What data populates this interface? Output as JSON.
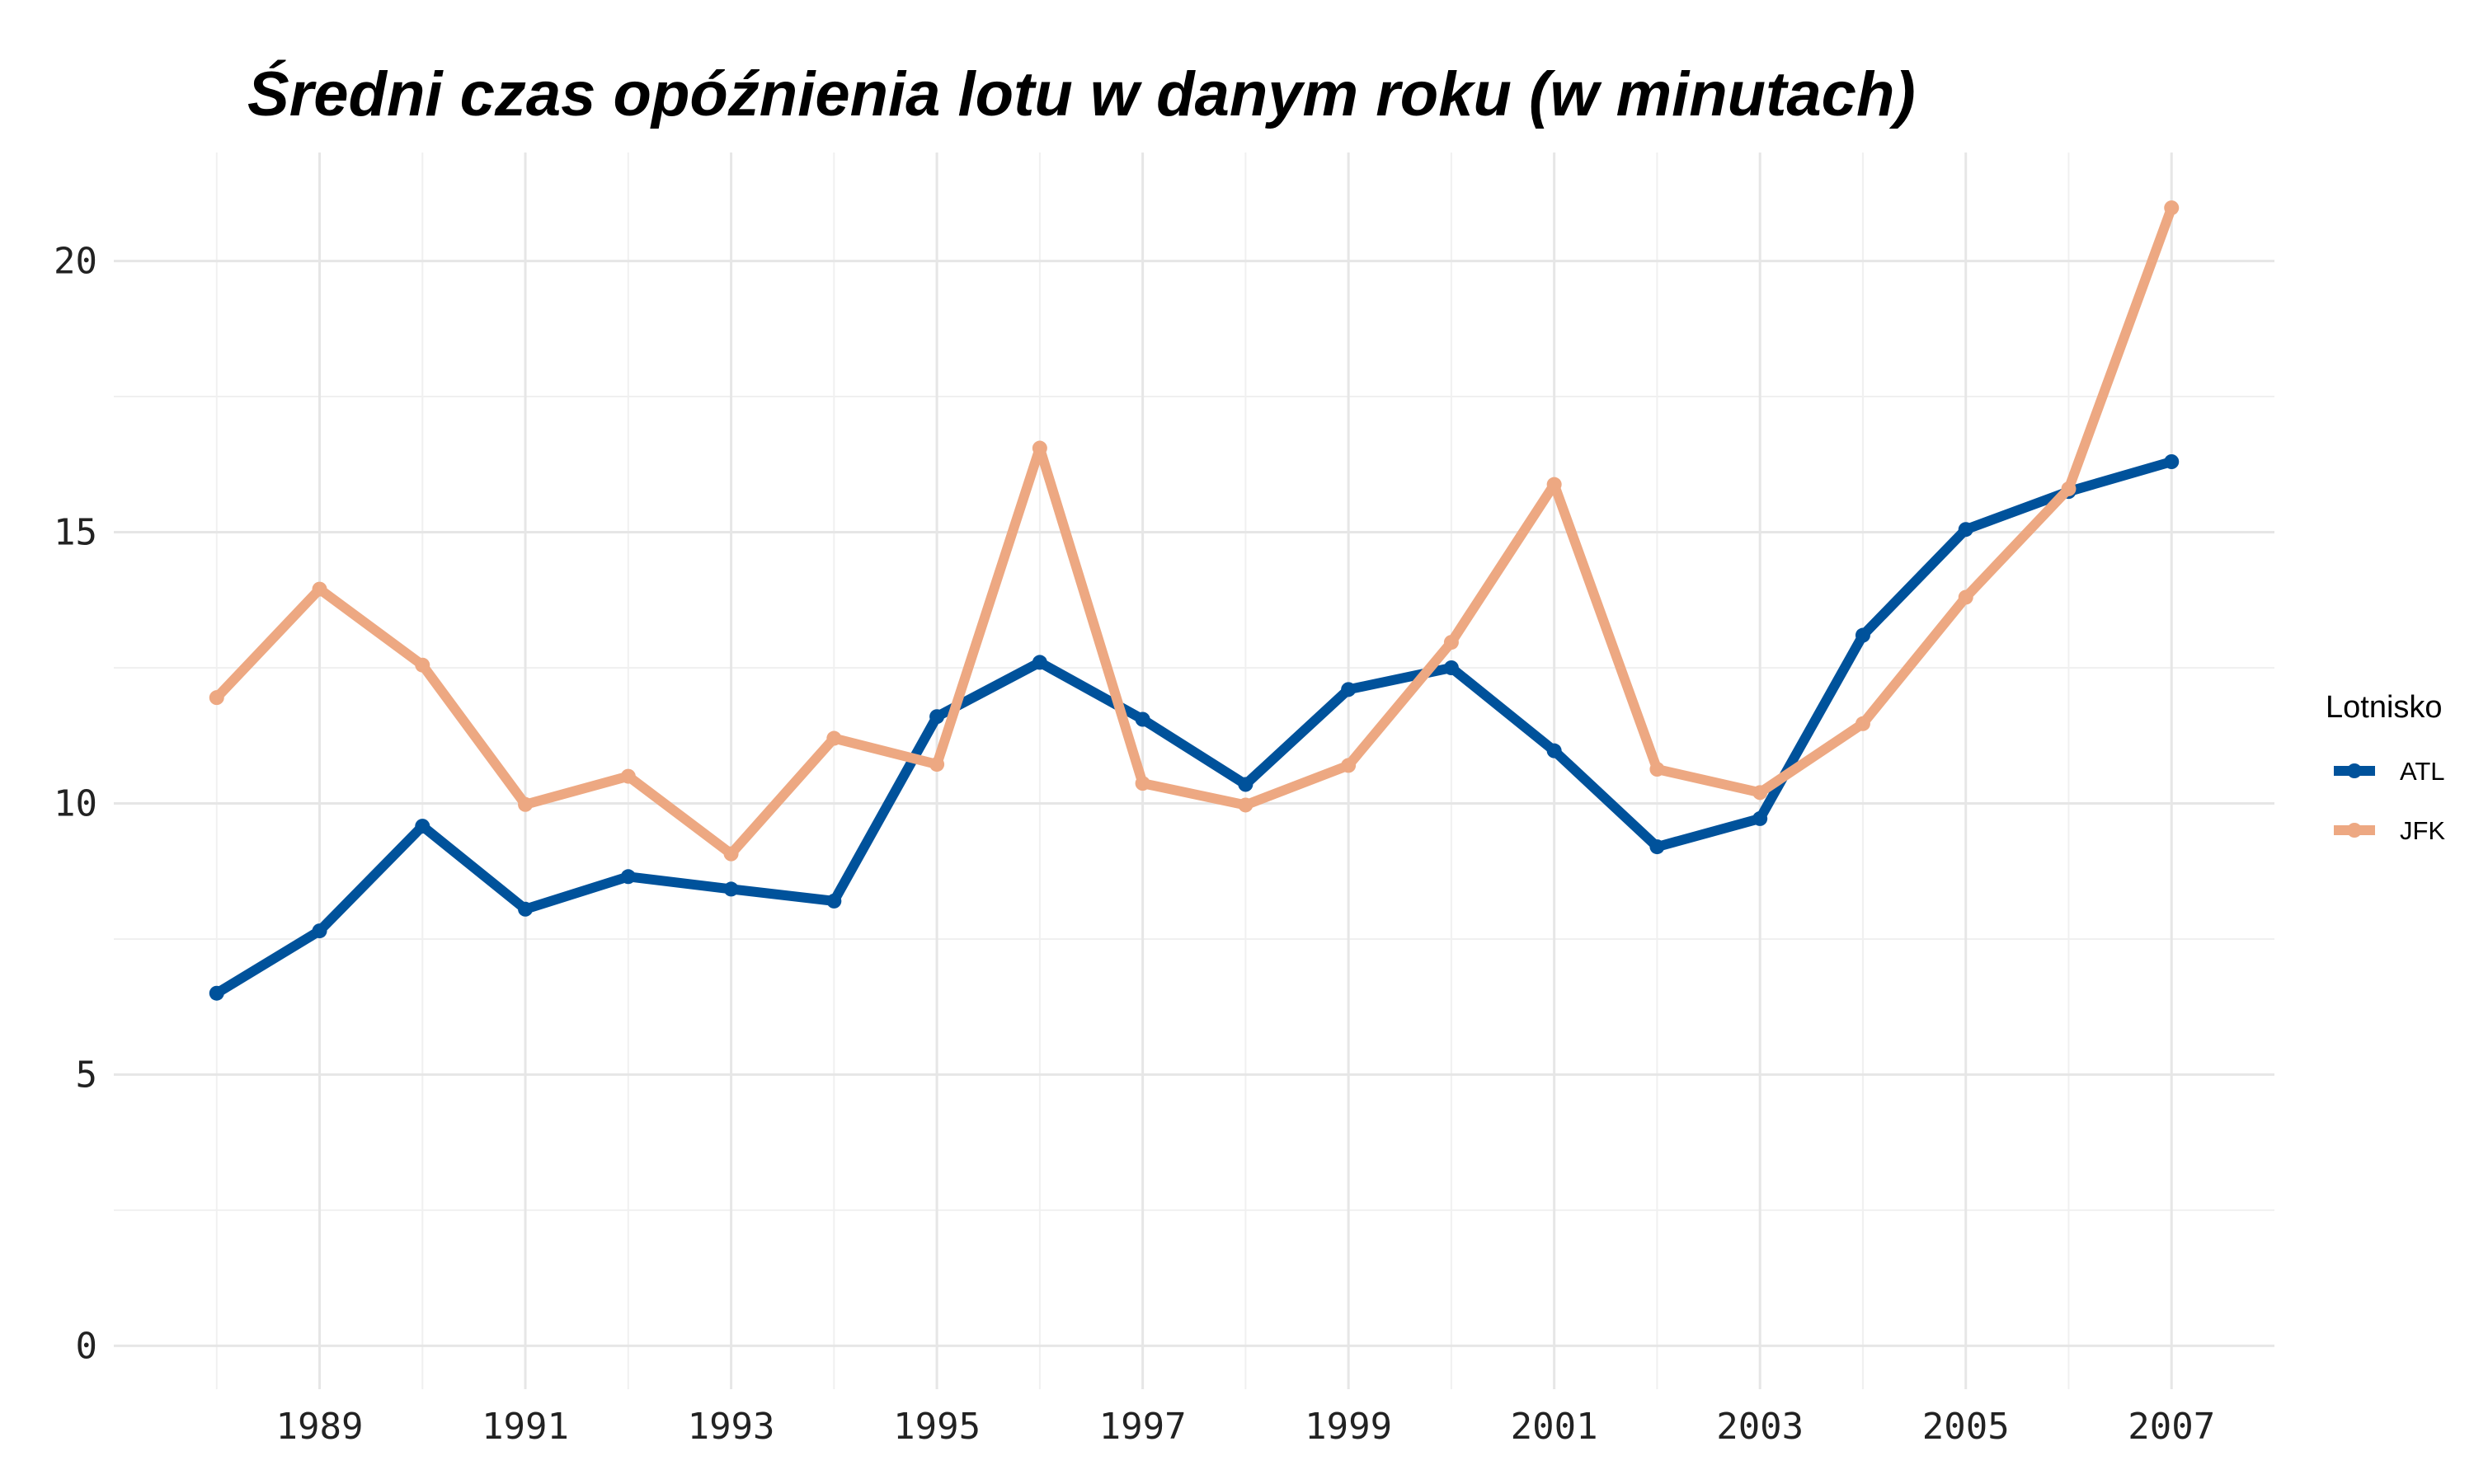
{
  "chart_data": {
    "type": "line",
    "title": "Średni czas opóźnienia lotu w danym roku (w minutach)",
    "xlabel": "",
    "ylabel": "",
    "x": [
      1988,
      1989,
      1990,
      1991,
      1992,
      1993,
      1994,
      1995,
      1996,
      1997,
      1998,
      1999,
      2000,
      2001,
      2002,
      2003,
      2004,
      2005,
      2006,
      2007
    ],
    "x_ticks": [
      1989,
      1991,
      1993,
      1995,
      1997,
      1999,
      2001,
      2003,
      2005,
      2007
    ],
    "y_ticks": [
      0,
      5,
      10,
      15,
      20
    ],
    "xlim": [
      1987,
      2008
    ],
    "ylim": [
      -0.8,
      22
    ],
    "grid": true,
    "legend": {
      "title": "Lotnisko",
      "placement": "right"
    },
    "series": [
      {
        "name": "ATL",
        "color": "#00529b",
        "values": [
          6.5,
          7.65,
          9.58,
          8.05,
          8.65,
          8.42,
          8.2,
          11.6,
          12.6,
          11.55,
          10.35,
          12.1,
          12.5,
          10.97,
          9.2,
          9.72,
          13.1,
          15.05,
          15.75,
          16.3
        ]
      },
      {
        "name": "JFK",
        "color": "#eda882",
        "values": [
          11.95,
          13.95,
          12.55,
          9.98,
          10.5,
          9.07,
          11.2,
          10.72,
          16.55,
          10.37,
          9.97,
          10.7,
          12.97,
          15.88,
          10.63,
          10.2,
          11.47,
          13.8,
          15.8,
          20.98
        ]
      }
    ]
  }
}
